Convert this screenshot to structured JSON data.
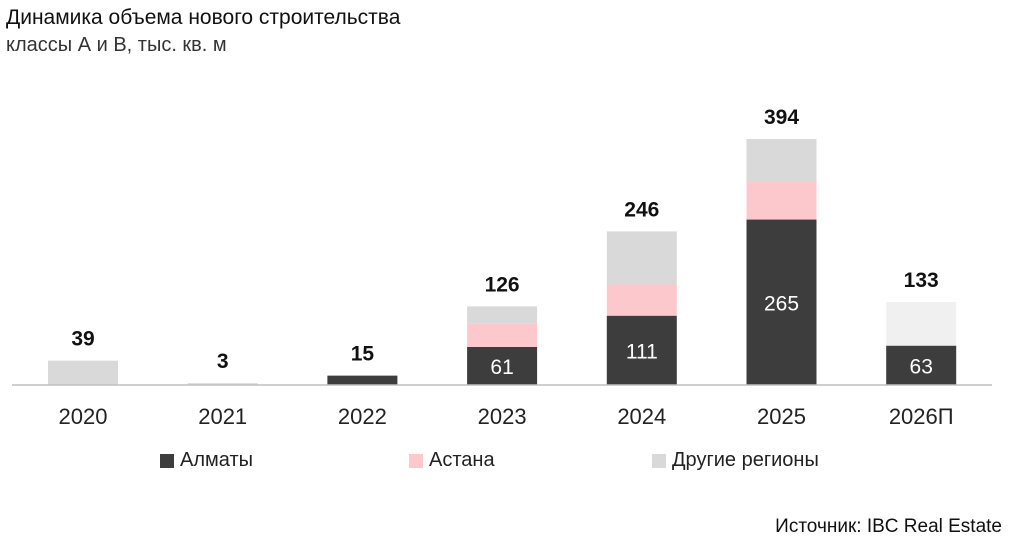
{
  "title": "Динамика объема нового строительства",
  "subtitle": "классы А и В, тыс. кв. м",
  "source": "Источник: IBC Real Estate",
  "colors": {
    "almaty": "#3d3d3d",
    "astana": "#fcc8cc",
    "other": "#d9d9d9",
    "forecast": "#f0f0f0",
    "axis": "#bfbfbf"
  },
  "legend": [
    {
      "label": "Алматы",
      "color_key": "almaty"
    },
    {
      "label": "Астана",
      "color_key": "astana"
    },
    {
      "label": "Другие регионы",
      "color_key": "other"
    }
  ],
  "chart_data": {
    "type": "bar",
    "stacked": true,
    "categories": [
      "2020",
      "2021",
      "2022",
      "2023",
      "2024",
      "2025",
      "2026П"
    ],
    "totals": [
      39,
      3,
      15,
      126,
      246,
      394,
      133
    ],
    "series": [
      {
        "name": "Алматы",
        "values": [
          0,
          0,
          15,
          61,
          111,
          265,
          63
        ],
        "value_labels": [
          null,
          null,
          null,
          "61",
          "111",
          "265",
          "63"
        ]
      },
      {
        "name": "Астана",
        "values": [
          0,
          0,
          0,
          38,
          50,
          60,
          0
        ]
      },
      {
        "name": "Другие регионы",
        "values": [
          39,
          3,
          0,
          27,
          85,
          69,
          70
        ]
      }
    ],
    "forecast_category": "2026П",
    "ylim": [
      0,
      394
    ],
    "legend_position": "bottom",
    "grid": false
  }
}
